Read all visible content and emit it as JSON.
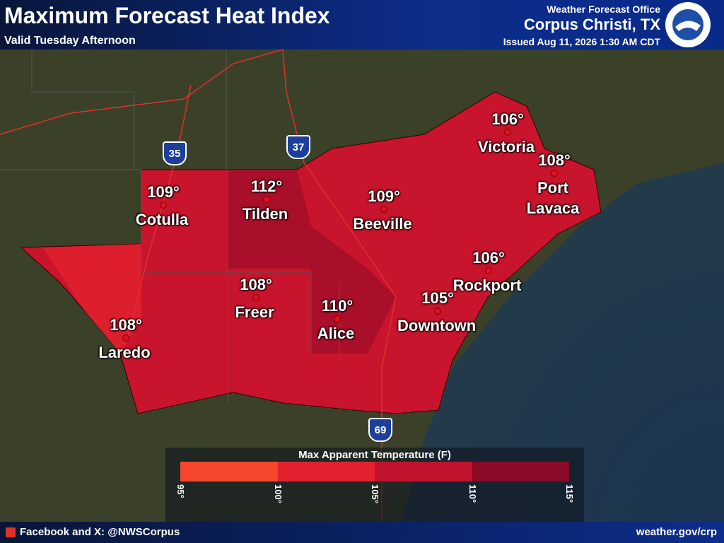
{
  "header": {
    "title": "Maximum Forecast Heat Index",
    "subtitle": "Valid Tuesday Afternoon",
    "office_label": "Weather Forecast Office",
    "office": "Corpus Christi, TX",
    "issued": "Issued Aug 11, 2026 1:30 AM CDT"
  },
  "cities": [
    {
      "name": "Cotulla",
      "temp": "109°"
    },
    {
      "name": "Tilden",
      "temp": "112°"
    },
    {
      "name": "Beeville",
      "temp": "109°"
    },
    {
      "name": "Victoria",
      "temp": "106°"
    },
    {
      "name": "Port Lavaca",
      "temp": "108°"
    },
    {
      "name": "Rockport",
      "temp": "106°"
    },
    {
      "name": "Downtown",
      "temp": "105°"
    },
    {
      "name": "Freer",
      "temp": "108°"
    },
    {
      "name": "Alice",
      "temp": "110°"
    },
    {
      "name": "Laredo",
      "temp": "108°"
    }
  ],
  "highways": [
    "35",
    "37",
    "69"
  ],
  "legend": {
    "title": "Max Apparent Temperature (F)",
    "ticks": [
      "95°",
      "100°",
      "105°",
      "110°",
      "115°"
    ],
    "colors": [
      "#f4472d",
      "#e2202e",
      "#c1132d",
      "#8b0a26"
    ]
  },
  "footer": {
    "social": "Facebook and X: @NWSCorpus",
    "url": "weather.gov/crp"
  }
}
